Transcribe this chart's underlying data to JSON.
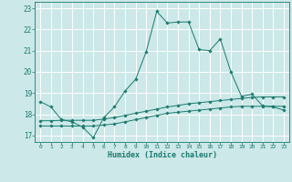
{
  "background_color": "#cce8e8",
  "grid_color": "#ffffff",
  "line_color": "#1a7a6e",
  "x_label": "Humidex (Indice chaleur)",
  "xlim": [
    -0.5,
    23.5
  ],
  "ylim": [
    16.7,
    23.3
  ],
  "yticks": [
    17,
    18,
    19,
    20,
    21,
    22,
    23
  ],
  "xticks": [
    0,
    1,
    2,
    3,
    4,
    5,
    6,
    7,
    8,
    9,
    10,
    11,
    12,
    13,
    14,
    15,
    16,
    17,
    18,
    19,
    20,
    21,
    22,
    23
  ],
  "xtick_labels": [
    "0",
    "1",
    "2",
    "3",
    "4",
    "5",
    "6",
    "7",
    "8",
    "9",
    "10",
    "11",
    "12",
    "13",
    "14",
    "15",
    "16",
    "17",
    "18",
    "19",
    "20",
    "21",
    "22",
    "23"
  ],
  "line1_x": [
    0,
    1,
    2,
    3,
    4,
    5,
    6,
    7,
    8,
    9,
    10,
    11,
    12,
    13,
    14,
    15,
    16,
    17,
    18,
    19,
    20,
    21,
    22,
    23
  ],
  "line1_y": [
    18.6,
    18.35,
    17.75,
    17.65,
    17.4,
    16.9,
    17.85,
    18.35,
    19.1,
    19.65,
    20.95,
    22.85,
    22.3,
    22.35,
    22.35,
    21.05,
    21.0,
    21.55,
    20.0,
    18.85,
    18.95,
    18.4,
    18.35,
    18.2
  ],
  "line2_x": [
    0,
    1,
    2,
    3,
    4,
    5,
    6,
    7,
    8,
    9,
    10,
    11,
    12,
    13,
    14,
    15,
    16,
    17,
    18,
    19,
    20,
    21,
    22,
    23
  ],
  "line2_y": [
    17.7,
    17.7,
    17.72,
    17.72,
    17.72,
    17.72,
    17.78,
    17.85,
    17.95,
    18.05,
    18.15,
    18.25,
    18.35,
    18.42,
    18.5,
    18.55,
    18.6,
    18.65,
    18.7,
    18.75,
    18.8,
    18.82,
    18.82,
    18.82
  ],
  "line3_x": [
    0,
    1,
    2,
    3,
    4,
    5,
    6,
    7,
    8,
    9,
    10,
    11,
    12,
    13,
    14,
    15,
    16,
    17,
    18,
    19,
    20,
    21,
    22,
    23
  ],
  "line3_y": [
    17.45,
    17.45,
    17.45,
    17.45,
    17.45,
    17.45,
    17.5,
    17.55,
    17.65,
    17.75,
    17.85,
    17.95,
    18.05,
    18.1,
    18.15,
    18.2,
    18.25,
    18.3,
    18.35,
    18.38,
    18.38,
    18.38,
    18.38,
    18.38
  ]
}
